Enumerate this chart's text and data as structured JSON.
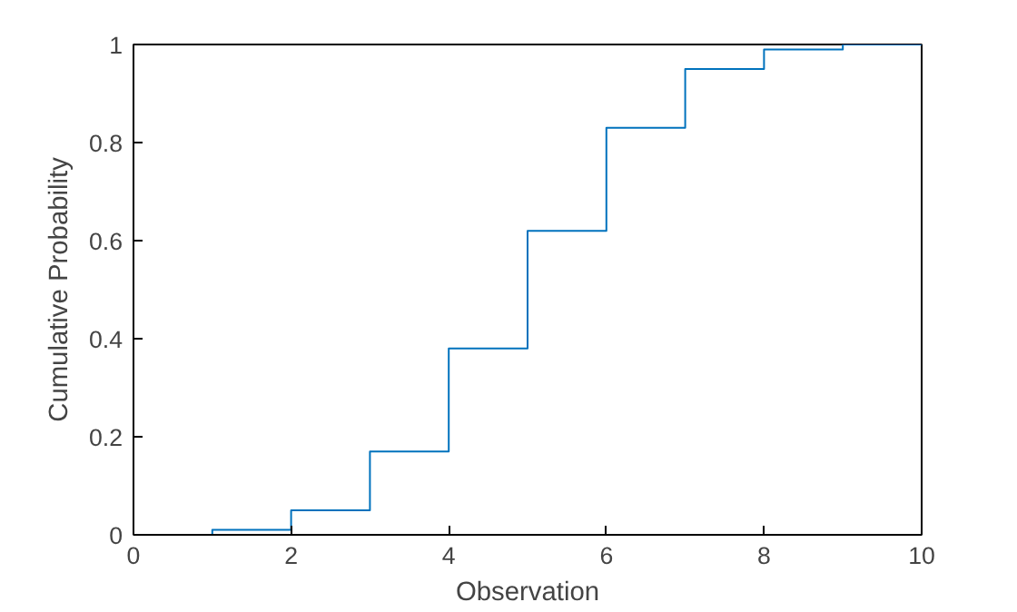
{
  "chart_data": {
    "type": "step",
    "xlabel": "Observation",
    "ylabel": "Cumulative Probability",
    "x": [
      0,
      1,
      2,
      3,
      4,
      5,
      6,
      7,
      8,
      9,
      10
    ],
    "series": [
      {
        "color": "#0072bd",
        "values": [
          0,
          0.01,
          0.05,
          0.17,
          0.38,
          0.62,
          0.83,
          0.95,
          0.99,
          1,
          1
        ]
      }
    ],
    "xlim": [
      0,
      10
    ],
    "xticks": [
      0,
      2,
      4,
      6,
      8,
      10
    ],
    "ylim": [
      0,
      1
    ],
    "yticks": [
      0,
      0.2,
      0.4,
      0.6,
      0.8,
      1
    ],
    "grid": false,
    "marker": "none",
    "line_style": "solid"
  }
}
